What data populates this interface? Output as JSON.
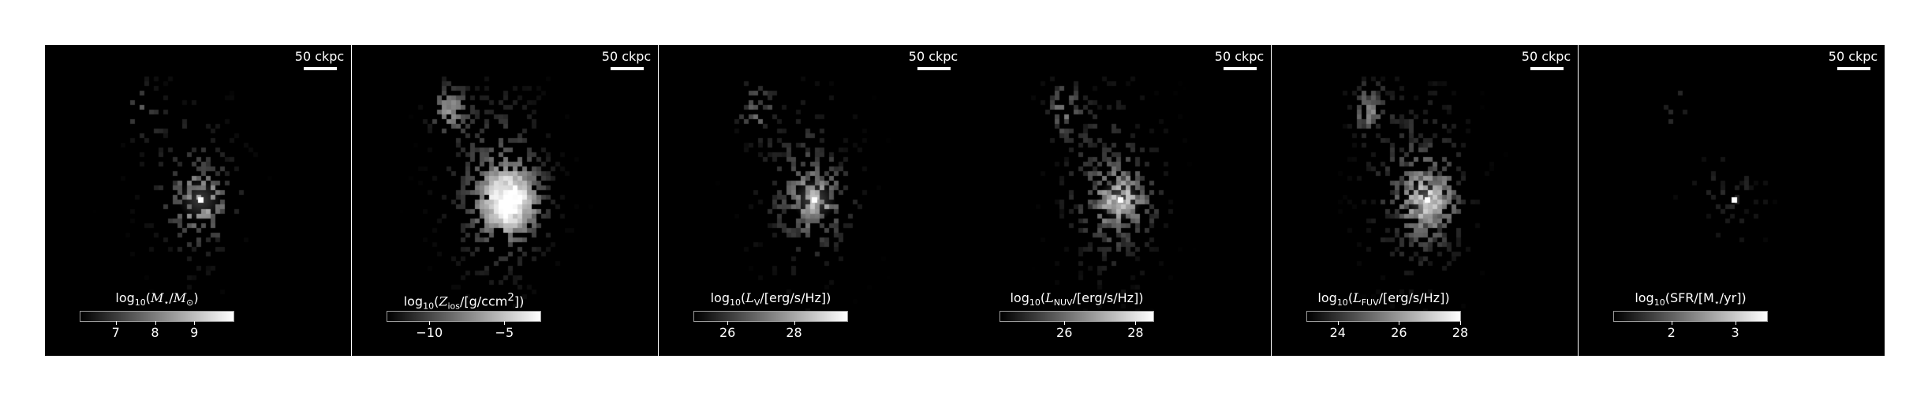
{
  "figure": {
    "panels": [
      {
        "id": "mass",
        "scalebar": "50 ckpc",
        "colorbar": {
          "label_parts": [
            [
              "t",
              "log"
            ],
            [
              "sub",
              "10"
            ],
            [
              "t",
              "("
            ],
            [
              "i",
              "M"
            ],
            [
              "sub",
              "⋆"
            ],
            [
              "t",
              "/"
            ],
            [
              "i",
              "M"
            ],
            [
              "sub",
              "⊙"
            ],
            [
              "t",
              ")"
            ]
          ],
          "range": [
            6.1,
            10.0
          ],
          "ticks": [
            7,
            8,
            9
          ],
          "ticklabels": [
            "7",
            "8",
            "9"
          ]
        },
        "map": {
          "brightness": 0.55,
          "density": 0.45,
          "bulge": 0.9,
          "noise": 0.35,
          "seed": 11,
          "core": 1.0
        }
      },
      {
        "id": "metallicity",
        "scalebar": "50 ckpc",
        "colorbar": {
          "label_parts": [
            [
              "t",
              "log"
            ],
            [
              "sub",
              "10"
            ],
            [
              "t",
              "("
            ],
            [
              "i",
              "Z"
            ],
            [
              "sub",
              "ios"
            ],
            [
              "t",
              "/[g/ccm"
            ],
            [
              "sup",
              "2"
            ],
            [
              "t",
              "])"
            ]
          ],
          "range": [
            -12.8,
            -2.6
          ],
          "ticks": [
            -10,
            -5
          ],
          "ticklabels": [
            "−10",
            "−5"
          ]
        },
        "map": {
          "brightness": 0.95,
          "density": 1.0,
          "bulge": 1.0,
          "noise": 0.2,
          "seed": 23,
          "core": 0.9
        }
      },
      {
        "id": "lum_v",
        "scalebar": "50 ckpc",
        "colorbar": {
          "label_parts": [
            [
              "t",
              "log"
            ],
            [
              "sub",
              "10"
            ],
            [
              "t",
              "("
            ],
            [
              "i",
              "L"
            ],
            [
              "sub",
              "V"
            ],
            [
              "t",
              "/[erg/s/Hz])"
            ]
          ],
          "range": [
            25.0,
            29.6
          ],
          "ticks": [
            26,
            28
          ],
          "ticklabels": [
            "26",
            "28"
          ]
        },
        "map": {
          "brightness": 0.65,
          "density": 0.65,
          "bulge": 0.7,
          "noise": 0.4,
          "seed": 37,
          "core": 1.0
        }
      },
      {
        "id": "lum_nuv",
        "scalebar": "50 ckpc",
        "colorbar": {
          "label_parts": [
            [
              "t",
              "log"
            ],
            [
              "sub",
              "10"
            ],
            [
              "t",
              "("
            ],
            [
              "i",
              "L"
            ],
            [
              "sub",
              "NUV"
            ],
            [
              "t",
              "/[erg/s/Hz])"
            ]
          ],
          "range": [
            24.2,
            28.5
          ],
          "ticks": [
            26,
            28
          ],
          "ticklabels": [
            "26",
            "28"
          ]
        },
        "map": {
          "brightness": 0.75,
          "density": 0.85,
          "bulge": 0.6,
          "noise": 0.45,
          "seed": 51,
          "core": 1.0
        }
      },
      {
        "id": "lum_fuv",
        "scalebar": "50 ckpc",
        "colorbar": {
          "label_parts": [
            [
              "t",
              "log"
            ],
            [
              "sub",
              "10"
            ],
            [
              "t",
              "("
            ],
            [
              "i",
              "L"
            ],
            [
              "sub",
              "FUV"
            ],
            [
              "t",
              "/[erg/s/Hz])"
            ]
          ],
          "range": [
            23.0,
            28.0
          ],
          "ticks": [
            24,
            26,
            28
          ],
          "ticklabels": [
            "24",
            "26",
            "28"
          ]
        },
        "map": {
          "brightness": 0.8,
          "density": 0.95,
          "bulge": 0.6,
          "noise": 0.45,
          "seed": 67,
          "core": 1.0
        }
      },
      {
        "id": "sfr",
        "scalebar": "50 ckpc",
        "colorbar": {
          "label_parts": [
            [
              "t",
              "log"
            ],
            [
              "sub",
              "10"
            ],
            [
              "t",
              "(SFR/[M"
            ],
            [
              "sub",
              "⋆"
            ],
            [
              "t",
              "/yr])"
            ]
          ],
          "range": [
            1.1,
            3.5
          ],
          "ticks": [
            2,
            3
          ],
          "ticklabels": [
            "2",
            "3"
          ]
        },
        "map": {
          "brightness": 0.35,
          "density": 0.06,
          "bulge": 0.05,
          "noise": 0.5,
          "seed": 83,
          "core": 1.0,
          "sparse": true
        }
      }
    ]
  }
}
